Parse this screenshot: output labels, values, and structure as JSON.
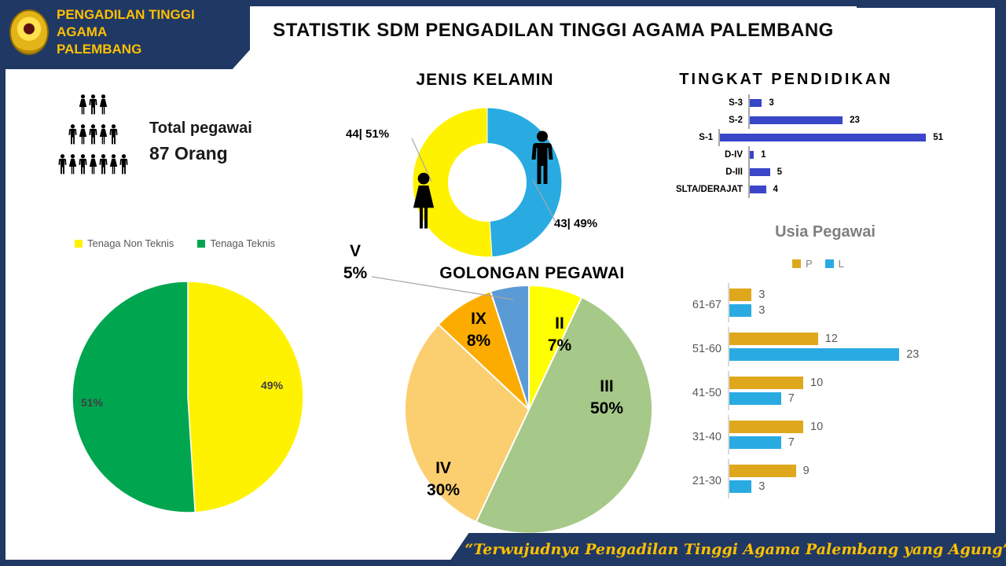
{
  "header": {
    "org_line1": "PENGADILAN TINGGI AGAMA",
    "org_line2": "PALEMBANG",
    "main_title": "STATISTIK SDM PENGADILAN TINGGI AGAMA PALEMBANG"
  },
  "total": {
    "label": "Total pegawai",
    "value": "87 Orang",
    "pyramid_rows": [
      [
        "F",
        "M",
        "F"
      ],
      [
        "M",
        "F",
        "M",
        "F",
        "M"
      ],
      [
        "M",
        "F",
        "M",
        "F",
        "M",
        "F",
        "M"
      ]
    ]
  },
  "footer": {
    "quote": "“Terwujudnya Pengadilan Tinggi Agama Palembang yang Agung”"
  },
  "colors": {
    "navy": "#203864",
    "gold": "#FFC000",
    "donut_male_blue": "#29ABE2",
    "donut_female_yellow": "#FFF200",
    "edu_bar_blue": "#3A46C8",
    "tenaga_yellow": "#FFF200",
    "tenaga_green": "#00A550",
    "usia_p_gold": "#DFA81C",
    "usia_l_blue": "#29ABE2"
  },
  "chart_data": [
    {
      "id": "jenis_kelamin",
      "type": "pie",
      "subtype": "donut",
      "title": "JENIS KELAMIN",
      "slices": [
        {
          "label": "Laki-laki",
          "value": 43,
          "pct": 49,
          "color": "#29ABE2",
          "data_label": "43| 49%",
          "icon": "male-icon"
        },
        {
          "label": "Perempuan",
          "value": 44,
          "pct": 51,
          "color": "#FFF200",
          "data_label": "44| 51%",
          "icon": "female-icon"
        }
      ],
      "total": 87
    },
    {
      "id": "tingkat_pendidikan",
      "type": "bar",
      "orientation": "horizontal",
      "title": "TINGKAT PENDIDIKAN",
      "categories": [
        "S-3",
        "S-2",
        "S-1",
        "D-IV",
        "D-III",
        "SLTA/DERAJAT"
      ],
      "values": [
        3,
        23,
        51,
        1,
        5,
        4
      ],
      "bar_color": "#3A46C8",
      "xlim": [
        0,
        51
      ],
      "grid": false,
      "value_labels": true
    },
    {
      "id": "tenaga",
      "type": "pie",
      "title": "",
      "legend_position": "top",
      "slices": [
        {
          "label": "Tenaga Non Teknis",
          "pct": 49,
          "color": "#FFF200",
          "data_label": "49%"
        },
        {
          "label": "Tenaga Teknis",
          "pct": 51,
          "color": "#00A550",
          "data_label": "51%"
        }
      ]
    },
    {
      "id": "golongan_pegawai",
      "type": "pie",
      "title": "GOLONGAN PEGAWAI",
      "slices": [
        {
          "label": "II",
          "pct": 7,
          "color": "#FFFF00",
          "data_label": "7%"
        },
        {
          "label": "III",
          "pct": 50,
          "color": "#A6C888",
          "data_label": "50%"
        },
        {
          "label": "IV",
          "pct": 30,
          "color": "#FBCE70",
          "data_label": "30%"
        },
        {
          "label": "IX",
          "pct": 8,
          "color": "#FCAC00",
          "data_label": "8%"
        },
        {
          "label": "V",
          "pct": 5,
          "color": "#5B9BD5",
          "data_label": "5%"
        }
      ]
    },
    {
      "id": "usia_pegawai",
      "type": "bar",
      "subtype": "grouped",
      "orientation": "horizontal",
      "title": "Usia Pegawai",
      "categories": [
        "61-67",
        "51-60",
        "41-50",
        "31-40",
        "21-30"
      ],
      "series": [
        {
          "name": "P",
          "color": "#DFA81C",
          "values": [
            3,
            12,
            10,
            10,
            9
          ]
        },
        {
          "name": "L",
          "color": "#29ABE2",
          "values": [
            3,
            23,
            7,
            7,
            3
          ]
        }
      ],
      "legend_position": "top",
      "grid": false,
      "value_labels": true
    }
  ]
}
